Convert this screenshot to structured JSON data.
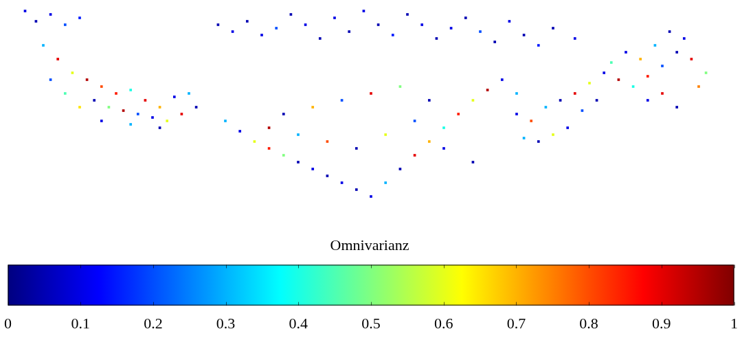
{
  "chart_data": {
    "type": "scatter",
    "xlim": [
      0,
      1000
    ],
    "ylim": [
      0,
      300
    ],
    "grid": false,
    "tick_labels": false,
    "marker": "square",
    "x": [
      25,
      40,
      60,
      80,
      100,
      50,
      70,
      90,
      110,
      130,
      150,
      170,
      190,
      210,
      230,
      250,
      120,
      140,
      160,
      180,
      200,
      220,
      240,
      260,
      80,
      60,
      100,
      130,
      170,
      210,
      290,
      310,
      330,
      350,
      370,
      390,
      410,
      430,
      450,
      470,
      490,
      510,
      530,
      550,
      570,
      590,
      610,
      630,
      650,
      670,
      690,
      710,
      730,
      750,
      780,
      300,
      320,
      340,
      360,
      380,
      400,
      420,
      440,
      460,
      480,
      500,
      520,
      540,
      560,
      580,
      600,
      620,
      640,
      660,
      680,
      700,
      380,
      420,
      460,
      500,
      540,
      580,
      360,
      400,
      440,
      480,
      520,
      560,
      600,
      640,
      700,
      720,
      740,
      760,
      780,
      800,
      820,
      840,
      860,
      880,
      900,
      920,
      940,
      960,
      930,
      910,
      890,
      870,
      850,
      830,
      810,
      790,
      770,
      750,
      730,
      710,
      900,
      880,
      950,
      920
    ],
    "y": [
      290,
      275,
      285,
      270,
      280,
      240,
      220,
      200,
      190,
      180,
      170,
      175,
      160,
      150,
      165,
      170,
      160,
      150,
      145,
      140,
      135,
      130,
      140,
      150,
      170,
      190,
      150,
      130,
      125,
      120,
      270,
      260,
      275,
      255,
      265,
      285,
      270,
      250,
      280,
      260,
      290,
      270,
      255,
      285,
      270,
      250,
      265,
      280,
      260,
      245,
      275,
      255,
      240,
      265,
      250,
      130,
      115,
      100,
      90,
      80,
      70,
      60,
      50,
      40,
      30,
      20,
      40,
      60,
      80,
      100,
      120,
      140,
      160,
      175,
      190,
      170,
      140,
      150,
      160,
      170,
      180,
      160,
      120,
      110,
      100,
      90,
      110,
      130,
      90,
      70,
      140,
      130,
      150,
      160,
      170,
      185,
      200,
      190,
      180,
      195,
      210,
      230,
      220,
      200,
      250,
      260,
      240,
      220,
      230,
      215,
      160,
      145,
      120,
      110,
      100,
      105,
      170,
      160,
      180,
      150
    ],
    "values": [
      0.1,
      0.05,
      0.1,
      0.2,
      0.15,
      0.3,
      0.9,
      0.6,
      0.95,
      0.8,
      0.85,
      0.4,
      0.9,
      0.7,
      0.1,
      0.3,
      0.05,
      0.5,
      0.95,
      0.2,
      0.1,
      0.6,
      0.9,
      0.05,
      0.45,
      0.2,
      0.65,
      0.1,
      0.3,
      0.05,
      0.05,
      0.1,
      0.05,
      0.1,
      0.2,
      0.05,
      0.1,
      0.05,
      0.1,
      0.05,
      0.1,
      0.05,
      0.15,
      0.05,
      0.1,
      0.05,
      0.1,
      0.05,
      0.2,
      0.05,
      0.1,
      0.05,
      0.15,
      0.05,
      0.1,
      0.3,
      0.1,
      0.6,
      0.85,
      0.5,
      0.05,
      0.1,
      0.05,
      0.1,
      0.05,
      0.1,
      0.3,
      0.05,
      0.9,
      0.7,
      0.4,
      0.85,
      0.6,
      0.95,
      0.1,
      0.3,
      0.05,
      0.7,
      0.2,
      0.9,
      0.5,
      0.05,
      0.95,
      0.3,
      0.8,
      0.05,
      0.6,
      0.2,
      0.1,
      0.05,
      0.1,
      0.8,
      0.3,
      0.05,
      0.9,
      0.6,
      0.1,
      0.95,
      0.4,
      0.85,
      0.2,
      0.05,
      0.9,
      0.5,
      0.1,
      0.05,
      0.3,
      0.7,
      0.1,
      0.45,
      0.05,
      0.2,
      0.1,
      0.6,
      0.05,
      0.3,
      0.9,
      0.1,
      0.75,
      0.05
    ],
    "colorbar": {
      "label": "Omnivarianz",
      "range": [
        0,
        1
      ],
      "ticks": [
        0,
        0.1,
        0.2,
        0.3,
        0.4,
        0.5,
        0.6,
        0.7,
        0.8,
        0.9,
        1
      ]
    }
  }
}
